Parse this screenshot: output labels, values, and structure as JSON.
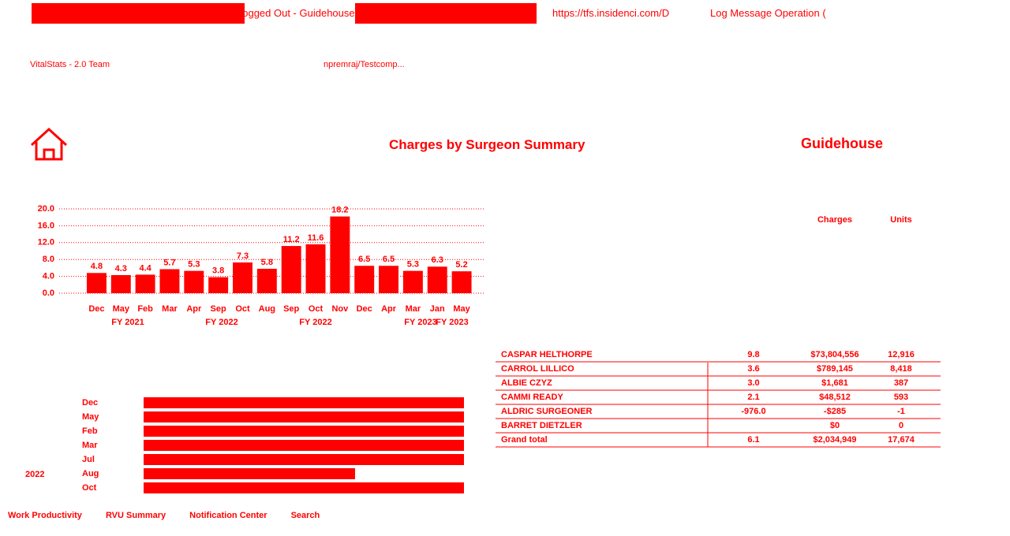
{
  "browser": {
    "tabs": [
      "Logged Out - Guidehouse",
      "https://tfs.insidenci.com/D",
      "Log Message Operation ("
    ],
    "bookmarks": [
      "VitalStats - 2.0 Team",
      "npremraj/Testcomp..."
    ]
  },
  "header": {
    "title": "Charges by Surgeon Summary",
    "logo": "Guidehouse"
  },
  "chart_data": [
    {
      "type": "bar",
      "categories": [
        "Dec",
        "May",
        "Feb",
        "Mar",
        "Apr",
        "Sep",
        "Oct",
        "Aug",
        "Sep",
        "Oct",
        "Nov",
        "Dec",
        "Apr",
        "Mar",
        "Jan",
        "May"
      ],
      "values": [
        4.8,
        4.3,
        4.4,
        5.7,
        5.3,
        3.8,
        7.3,
        5.8,
        11.2,
        11.6,
        18.2,
        6.5,
        6.5,
        5.3,
        6.3,
        5.2
      ],
      "groups": [
        "FY 2021",
        "FY 2022",
        "FY 2022",
        "FY 2023",
        "FY 2023"
      ],
      "color": "#ff0000",
      "ylim": [
        0,
        20
      ],
      "yticks": [
        {
          "value": 0,
          "label": "0.0"
        },
        {
          "value": 4,
          "label": "4.0"
        },
        {
          "value": 8,
          "label": "8.0"
        },
        {
          "value": 12,
          "label": "12.0"
        },
        {
          "value": 16,
          "label": "16.0"
        },
        {
          "value": 20,
          "label": "20.0"
        }
      ],
      "grid": true
    },
    {
      "type": "hbar",
      "year": "2022",
      "categories": [
        "Dec",
        "May",
        "Feb",
        "Mar",
        "Jul",
        "Aug",
        "Oct"
      ],
      "values": [
        100,
        100,
        100,
        100,
        100,
        66,
        100
      ],
      "xlim": [
        0,
        100
      ],
      "color": "#ff0000"
    }
  ],
  "table": {
    "columns": [
      "",
      "",
      "Charges",
      "Units"
    ],
    "rows": [
      [
        "CASPAR HELTHORPE",
        "9.8",
        "$73,804,556",
        "12,916"
      ],
      [
        "CARROL LILLICO",
        "3.6",
        "$789,145",
        "8,418"
      ],
      [
        "ALBIE CZYZ",
        "3.0",
        "$1,681",
        "387"
      ],
      [
        "CAMMI READY",
        "2.1",
        "$48,512",
        "593"
      ],
      [
        "ALDRIC SURGEONER",
        "-976.0",
        "-$285",
        "-1"
      ],
      [
        "BARRET DIETZLER",
        "",
        "$0",
        "0"
      ],
      [
        "Grand total",
        "6.1",
        "$2,034,949",
        "17,674"
      ]
    ]
  },
  "taskbar": [
    "Work Productivity",
    "RVU Summary",
    "Notification Center",
    "Search"
  ]
}
